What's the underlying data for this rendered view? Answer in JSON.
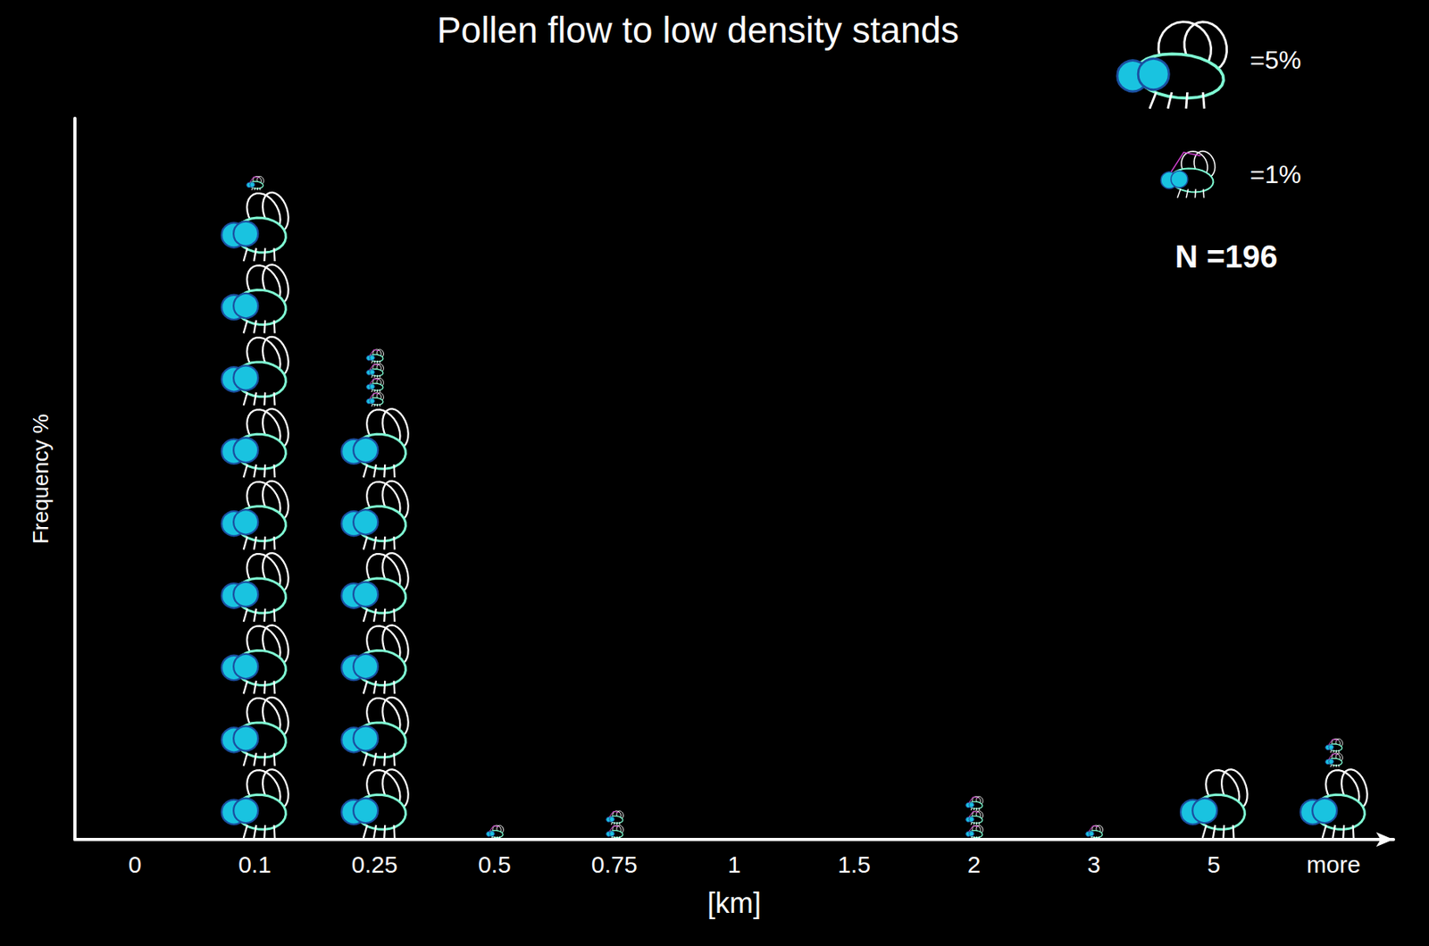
{
  "chart_data": {
    "type": "bar",
    "title": "Pollen flow to low density stands",
    "categories": [
      "0",
      "0.1",
      "0.25",
      "0.5",
      "0.75",
      "1",
      "1.5",
      "2",
      "3",
      "5",
      "more"
    ],
    "values": [
      0,
      46,
      34,
      1,
      2,
      0,
      0,
      3,
      1,
      5,
      7
    ],
    "x_label": "[km]",
    "y_label": "Frequency %",
    "ylim": [
      0,
      50
    ],
    "tick_labels": "x",
    "grid": false,
    "color": "#7fffd4",
    "annotations": [
      "=5%",
      "=1%",
      "N =196"
    ]
  }
}
